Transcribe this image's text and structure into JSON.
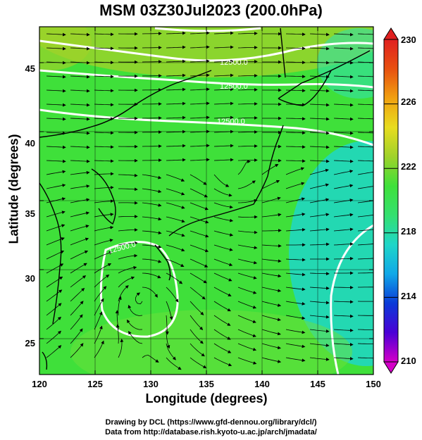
{
  "title": "MSM 03Z30Jul2023 (200.0hPa)",
  "xlabel": "Longitude (degrees)",
  "ylabel": "Latitude  (degrees)",
  "credit_line1": "Drawing by DCL (https://www.gfd-dennou.org/library/dcl/)",
  "credit_line2": "Data from http://database.rish.kyoto-u.ac.jp/arch/jmadata/",
  "map": {
    "lon_range": [
      120,
      150
    ],
    "lat_range": [
      22.4,
      47.6
    ],
    "lon_ticks": [
      "120",
      "125",
      "130",
      "135",
      "140",
      "145",
      "150"
    ],
    "lat_ticks": [
      "25",
      "30",
      "35",
      "40",
      "45"
    ],
    "field": "temperature",
    "field_unit": "K",
    "vector_field": "wind streamlines",
    "contour_labels": [
      "12500.0",
      "12500.0",
      "12500.0",
      "12500.0"
    ],
    "colors": {
      "warm_north": "#9fd22a",
      "main_green": "#3fe03a",
      "cool_east": "#1fd6c8",
      "contour": "#ffffff",
      "coast": "#000000"
    }
  },
  "colorbar": {
    "min": 210,
    "max": 230,
    "labels": [
      "230",
      "226",
      "222",
      "218",
      "214",
      "210"
    ],
    "stops": [
      "#d400c8",
      "#4a00d6",
      "#0a3ad8",
      "#10a8e8",
      "#1fd6c8",
      "#34e070",
      "#3fe03a",
      "#9fd22a",
      "#e8dc20",
      "#f0a010",
      "#e85010",
      "#e02020"
    ]
  }
}
